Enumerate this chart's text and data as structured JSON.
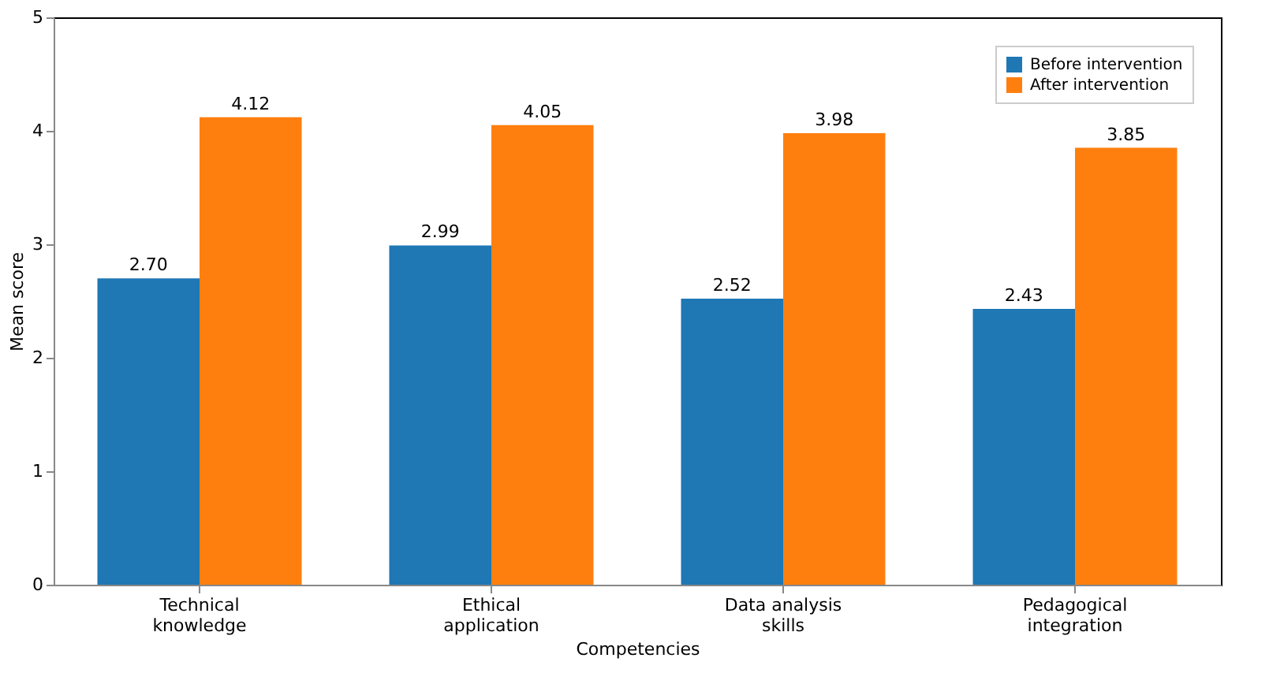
{
  "chart_data": {
    "type": "bar",
    "categories": [
      "Technical\nknowledge",
      "Ethical\napplication",
      "Data analysis\nskills",
      "Pedagogical\nintegration"
    ],
    "series": [
      {
        "name": "Before intervention",
        "color": "#1f77b4",
        "values": [
          2.7,
          2.99,
          2.52,
          2.43
        ],
        "value_labels": [
          "2.70",
          "2.99",
          "2.52",
          "2.43"
        ]
      },
      {
        "name": "After intervention",
        "color": "#ff7f0e",
        "values": [
          4.12,
          4.05,
          3.98,
          3.85
        ],
        "value_labels": [
          "4.12",
          "4.05",
          "3.98",
          "3.85"
        ]
      }
    ],
    "xlabel": "Competencies",
    "ylabel": "Mean score",
    "ylim": [
      0,
      5
    ],
    "yticks": [
      0,
      1,
      2,
      3,
      4,
      5
    ],
    "legend": "top right",
    "grid": false
  }
}
